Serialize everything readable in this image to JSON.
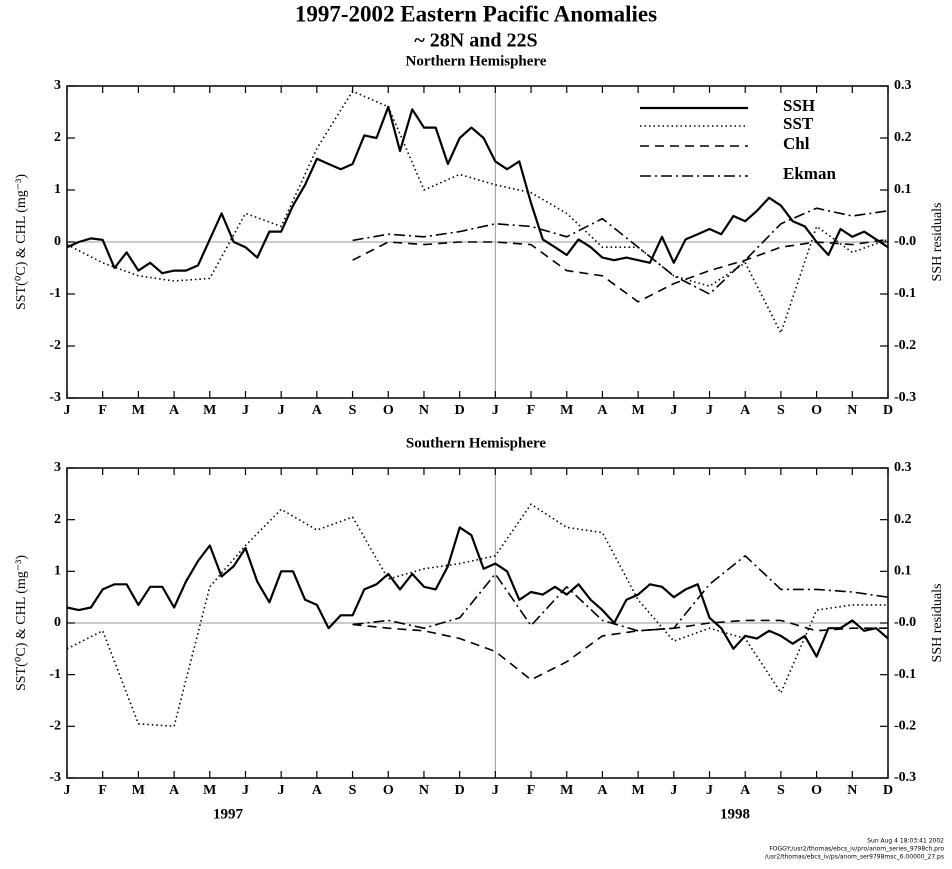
{
  "header": {
    "title": "1997-2002 Eastern Pacific Anomalies",
    "subtitle": "~ 28N and 22S"
  },
  "footer": [
    "Sun Aug  4 18:03:41 2002",
    "FOGGY:/usr2/thomas/ebcs_iv/pro/anom_series_9798ch.pro",
    "/usr2/thomas/ebcs_iv/ps/anom_ser9798msc_6.00000_27.ps"
  ],
  "chart_data": [
    {
      "type": "line",
      "title": "Northern Hemisphere",
      "ylabel": "SST(⁰C) & CHL (mg⁻³)",
      "y2label": "SSH residuals",
      "xlim": [
        0,
        23
      ],
      "ylim": [
        -3,
        3
      ],
      "y2lim": [
        -0.3,
        0.3
      ],
      "xticks": [
        {
          "value": 0,
          "label": "J"
        },
        {
          "value": 1,
          "label": "F"
        },
        {
          "value": 2,
          "label": "M"
        },
        {
          "value": 3,
          "label": "A"
        },
        {
          "value": 4,
          "label": "M"
        },
        {
          "value": 5,
          "label": "J"
        },
        {
          "value": 6,
          "label": "J"
        },
        {
          "value": 7,
          "label": "A"
        },
        {
          "value": 8,
          "label": "S"
        },
        {
          "value": 9,
          "label": "O"
        },
        {
          "value": 10,
          "label": "N"
        },
        {
          "value": 11,
          "label": "D"
        },
        {
          "value": 12,
          "label": "J"
        },
        {
          "value": 13,
          "label": "F"
        },
        {
          "value": 14,
          "label": "M"
        },
        {
          "value": 15,
          "label": "A"
        },
        {
          "value": 16,
          "label": "M"
        },
        {
          "value": 17,
          "label": "J"
        },
        {
          "value": 18,
          "label": "J"
        },
        {
          "value": 19,
          "label": "A"
        },
        {
          "value": 20,
          "label": "S"
        },
        {
          "value": 21,
          "label": "O"
        },
        {
          "value": 22,
          "label": "N"
        },
        {
          "value": 23,
          "label": "D"
        }
      ],
      "yticks": [
        3,
        2,
        1,
        0,
        -1,
        -2,
        -3
      ],
      "y2ticks": [
        0.3,
        0.2,
        0.1,
        {
          "value": 0,
          "label": "-0.0"
        },
        -0.1,
        -0.2,
        -0.3
      ],
      "hline": 0,
      "vline": 12,
      "legend": "upper right",
      "series": [
        {
          "name": "SSH",
          "color": "#000000",
          "style": "solid",
          "axis": "y2",
          "x": [
            0,
            0.33,
            0.67,
            1,
            1.33,
            1.67,
            2,
            2.33,
            2.67,
            3,
            3.33,
            3.67,
            4,
            4.33,
            4.67,
            5,
            5.33,
            5.67,
            6,
            6.33,
            6.67,
            7,
            7.33,
            7.67,
            8,
            8.33,
            8.67,
            9,
            9.33,
            9.67,
            10,
            10.33,
            10.67,
            11,
            11.33,
            11.67,
            12,
            12.33,
            12.67,
            13,
            13.33,
            13.67,
            14,
            14.33,
            14.67,
            15,
            15.33,
            15.67,
            16,
            16.33,
            16.67,
            17,
            17.33,
            17.67,
            18,
            18.33,
            18.67,
            19,
            19.33,
            19.67,
            20,
            20.33,
            20.67,
            21,
            21.33,
            21.67,
            22,
            22.33,
            22.67,
            23
          ],
          "values": [
            -0.01,
            0,
            0.007,
            0.004,
            -0.05,
            -0.02,
            -0.055,
            -0.04,
            -0.06,
            -0.055,
            -0.055,
            -0.045,
            0.005,
            0.055,
            0,
            -0.01,
            -0.03,
            0.02,
            0.02,
            0.07,
            0.11,
            0.16,
            0.15,
            0.14,
            0.15,
            0.205,
            0.2,
            0.26,
            0.175,
            0.255,
            0.22,
            0.22,
            0.15,
            0.2,
            0.22,
            0.2,
            0.155,
            0.14,
            0.155,
            0.075,
            0.005,
            -0.01,
            -0.025,
            0.005,
            -0.01,
            -0.03,
            -0.035,
            -0.03,
            -0.035,
            -0.04,
            0.01,
            -0.04,
            0.005,
            0.015,
            0.025,
            0.015,
            0.05,
            0.04,
            0.06,
            0.085,
            0.07,
            0.04,
            0.03,
            0,
            -0.025,
            0.025,
            0.01,
            0.02,
            0.005,
            -0.01
          ]
        },
        {
          "name": "SST",
          "color": "#000000",
          "style": "dotted",
          "x": [
            0,
            1,
            2,
            3,
            4,
            5,
            6,
            7,
            8,
            9,
            10,
            11,
            12,
            13,
            14,
            15,
            16,
            17,
            18,
            19,
            20,
            21,
            22,
            23
          ],
          "values": [
            -0.05,
            -0.4,
            -0.65,
            -0.75,
            -0.7,
            0.55,
            0.3,
            1.8,
            2.9,
            2.6,
            1.0,
            1.3,
            1.1,
            0.95,
            0.55,
            -0.1,
            -0.1,
            -0.65,
            -0.85,
            -0.4,
            -1.75,
            0.3,
            -0.2,
            0.05
          ]
        },
        {
          "name": "Chl",
          "color": "#000000",
          "style": "dashed",
          "x": [
            8,
            9,
            10,
            11,
            12,
            13,
            14,
            15,
            16,
            17,
            18,
            19,
            20,
            21,
            22,
            23
          ],
          "values": [
            -0.35,
            0.0,
            -0.05,
            0.0,
            0.0,
            -0.05,
            -0.55,
            -0.65,
            -1.15,
            -0.8,
            -0.55,
            -0.35,
            -0.1,
            0.0,
            -0.05,
            0.05
          ]
        },
        {
          "name": "Ekman",
          "color": "#000000",
          "style": "dashdot",
          "x": [
            8,
            9,
            10,
            11,
            12,
            13,
            14,
            15,
            16,
            17,
            18,
            19,
            20,
            21,
            22,
            23
          ],
          "values": [
            0.03,
            0.15,
            0.1,
            0.2,
            0.35,
            0.3,
            0.1,
            0.45,
            -0.1,
            -0.65,
            -1.0,
            -0.35,
            0.35,
            0.65,
            0.5,
            0.6
          ]
        }
      ]
    },
    {
      "type": "line",
      "title": "Southern Hemisphere",
      "ylabel": "SST(⁰C) & CHL (mg⁻³)",
      "y2label": "SSH residuals",
      "xlim": [
        0,
        23
      ],
      "ylim": [
        -3,
        3
      ],
      "y2lim": [
        -0.3,
        0.3
      ],
      "xticks": [
        {
          "value": 0,
          "label": "J"
        },
        {
          "value": 1,
          "label": "F"
        },
        {
          "value": 2,
          "label": "M"
        },
        {
          "value": 3,
          "label": "A"
        },
        {
          "value": 4,
          "label": "M"
        },
        {
          "value": 5,
          "label": "J"
        },
        {
          "value": 6,
          "label": "J"
        },
        {
          "value": 7,
          "label": "A"
        },
        {
          "value": 8,
          "label": "S"
        },
        {
          "value": 9,
          "label": "O"
        },
        {
          "value": 10,
          "label": "N"
        },
        {
          "value": 11,
          "label": "D"
        },
        {
          "value": 12,
          "label": "J"
        },
        {
          "value": 13,
          "label": "F"
        },
        {
          "value": 14,
          "label": "M"
        },
        {
          "value": 15,
          "label": "A"
        },
        {
          "value": 16,
          "label": "M"
        },
        {
          "value": 17,
          "label": "J"
        },
        {
          "value": 18,
          "label": "J"
        },
        {
          "value": 19,
          "label": "A"
        },
        {
          "value": 20,
          "label": "S"
        },
        {
          "value": 21,
          "label": "O"
        },
        {
          "value": 22,
          "label": "N"
        },
        {
          "value": 23,
          "label": "D"
        }
      ],
      "yticks": [
        3,
        2,
        1,
        0,
        -1,
        -2,
        -3
      ],
      "y2ticks": [
        0.3,
        0.2,
        0.1,
        {
          "value": 0,
          "label": "-0.0"
        },
        -0.1,
        -0.2,
        -0.3
      ],
      "hline": 0,
      "vline": 12,
      "year_labels": [
        "1997",
        "1998"
      ],
      "series": [
        {
          "color": "#000000",
          "style": "solid",
          "axis": "y2",
          "x": [
            0,
            0.33,
            0.67,
            1,
            1.33,
            1.67,
            2,
            2.33,
            2.67,
            3,
            3.33,
            3.67,
            4,
            4.33,
            4.67,
            5,
            5.33,
            5.67,
            6,
            6.33,
            6.67,
            7,
            7.33,
            7.67,
            8,
            8.33,
            8.67,
            9,
            9.33,
            9.67,
            10,
            10.33,
            10.67,
            11,
            11.33,
            11.67,
            12,
            12.33,
            12.67,
            13,
            13.33,
            13.67,
            14,
            14.33,
            14.67,
            15,
            15.33,
            15.67,
            16,
            16.33,
            16.67,
            17,
            17.33,
            17.67,
            18,
            18.33,
            18.67,
            19,
            19.33,
            19.67,
            20,
            20.33,
            20.67,
            21,
            21.33,
            21.67,
            22,
            22.33,
            22.67,
            23
          ],
          "values": [
            0.03,
            0.025,
            0.03,
            0.065,
            0.075,
            0.075,
            0.035,
            0.07,
            0.07,
            0.03,
            0.08,
            0.12,
            0.15,
            0.09,
            0.11,
            0.145,
            0.08,
            0.04,
            0.1,
            0.1,
            0.045,
            0.035,
            -0.01,
            0.015,
            0.015,
            0.065,
            0.075,
            0.095,
            0.065,
            0.095,
            0.07,
            0.065,
            0.11,
            0.185,
            0.17,
            0.105,
            0.115,
            0.1,
            0.045,
            0.06,
            0.055,
            0.07,
            0.055,
            0.075,
            0.045,
            0.025,
            0,
            0.045,
            0.055,
            0.075,
            0.07,
            0.05,
            0.065,
            0.075,
            0.01,
            -0.01,
            -0.05,
            -0.025,
            -0.03,
            -0.015,
            -0.025,
            -0.04,
            -0.025,
            -0.065,
            -0.01,
            -0.01,
            0.005,
            -0.015,
            -0.01,
            -0.03
          ]
        },
        {
          "color": "#000000",
          "style": "dotted",
          "x": [
            0,
            1,
            2,
            3,
            4,
            5,
            6,
            7,
            8,
            9,
            10,
            11,
            12,
            13,
            14,
            15,
            16,
            17,
            18,
            19,
            20,
            21,
            22,
            23
          ],
          "values": [
            -0.5,
            -0.15,
            -1.95,
            -2.0,
            0.7,
            1.5,
            2.2,
            1.8,
            2.05,
            0.85,
            1.05,
            1.15,
            1.3,
            2.3,
            1.85,
            1.75,
            0.45,
            -0.35,
            -0.1,
            -0.3,
            -1.35,
            0.25,
            0.35,
            0.35
          ]
        },
        {
          "color": "#000000",
          "style": "dashed",
          "x": [
            8,
            9,
            10,
            11,
            12,
            13,
            14,
            15,
            16,
            17,
            18,
            19,
            20,
            21,
            22,
            23
          ],
          "values": [
            -0.03,
            -0.1,
            -0.15,
            -0.3,
            -0.55,
            -1.1,
            -0.75,
            -0.25,
            -0.15,
            -0.1,
            0.0,
            0.05,
            0.05,
            -0.15,
            -0.1,
            -0.1
          ]
        },
        {
          "color": "#000000",
          "style": "dashdot",
          "x": [
            8,
            9,
            10,
            11,
            12,
            13,
            14,
            15,
            16,
            17,
            18,
            19,
            20,
            21,
            22,
            23
          ],
          "values": [
            -0.03,
            0.05,
            -0.1,
            0.1,
            0.95,
            -0.05,
            0.7,
            0.05,
            -0.15,
            -0.1,
            0.75,
            1.3,
            0.65,
            0.65,
            0.6,
            0.5
          ]
        }
      ]
    }
  ]
}
